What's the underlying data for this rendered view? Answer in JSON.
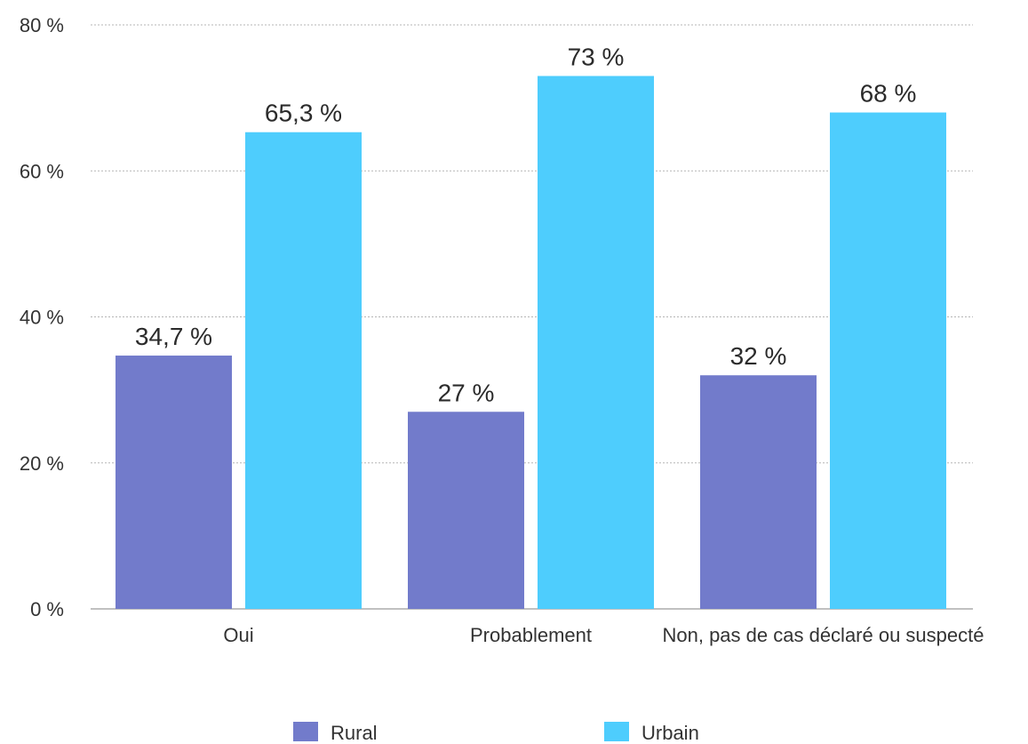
{
  "chart_data": {
    "type": "bar",
    "categories": [
      "Oui",
      "Probablement",
      "Non, pas de cas déclaré ou suspecté"
    ],
    "series": [
      {
        "name": "Rural",
        "color": "#727bcb",
        "values": [
          34.7,
          27,
          32
        ],
        "labels": [
          "34,7 %",
          "27 %",
          "32 %"
        ]
      },
      {
        "name": "Urbain",
        "color": "#4ecdfd",
        "values": [
          65.3,
          73,
          68
        ],
        "labels": [
          "65,3 %",
          "73 %",
          "68 %"
        ]
      }
    ],
    "ylim": [
      0,
      80
    ],
    "y_ticks": [
      {
        "value": 0,
        "label": "0 %"
      },
      {
        "value": 20,
        "label": "20 %"
      },
      {
        "value": 40,
        "label": "40 %"
      },
      {
        "value": 60,
        "label": "60 %"
      },
      {
        "value": 80,
        "label": "80 %"
      }
    ],
    "grid": true,
    "legend_position": "bottom",
    "title": "",
    "xlabel": "",
    "ylabel": ""
  }
}
